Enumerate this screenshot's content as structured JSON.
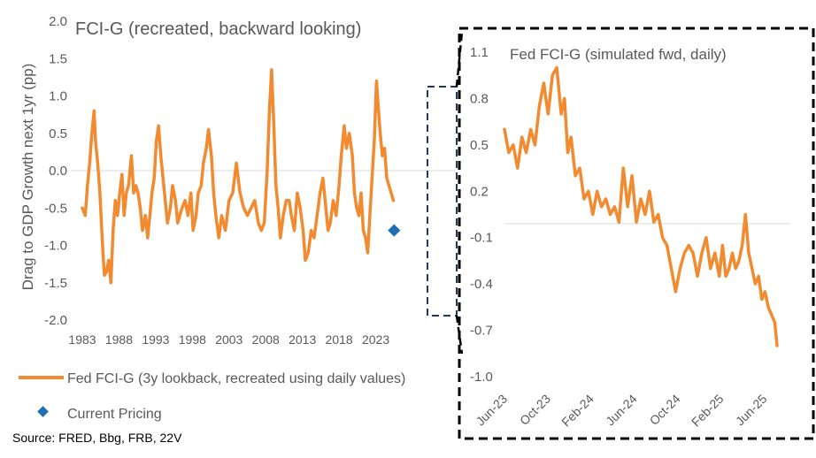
{
  "colors": {
    "series": "#F28A30",
    "marker": "#1F6FB2",
    "text": "#595959",
    "axis": "#D9D9D9",
    "frame": "#000000",
    "frame_small": "#1F3864"
  },
  "source": "Source: FRED, Bbg, FRB, 22V",
  "chart_data": [
    {
      "type": "line",
      "title": "FCI-G (recreated, backward looking)",
      "xlabel": "",
      "ylabel": "Drag to GDP Growth next 1yr (pp)",
      "ylim": [
        -2.0,
        2.0
      ],
      "yticks": [
        "2.0",
        "1.5",
        "1.0",
        "0.5",
        "0.0",
        "-0.5",
        "-1.0",
        "-1.5",
        "-2.0"
      ],
      "xticks": [
        "1983",
        "1988",
        "1993",
        "1998",
        "2003",
        "2008",
        "2013",
        "2018",
        "2023"
      ],
      "legend": [
        "Fed FCI-G (3y lookback, recreated using daily values)",
        "Current Pricing"
      ],
      "series": [
        {
          "name": "Fed FCI-G (3y lookback, recreated using daily values)",
          "x": [
            1983.0,
            1983.4,
            1983.7,
            1984.0,
            1984.3,
            1984.6,
            1984.8,
            1985.1,
            1985.4,
            1985.7,
            1986.0,
            1986.3,
            1986.6,
            1986.9,
            1987.2,
            1987.5,
            1987.8,
            1988.1,
            1988.4,
            1988.7,
            1989.0,
            1989.3,
            1989.7,
            1990.0,
            1990.3,
            1990.6,
            1990.9,
            1991.2,
            1991.6,
            1991.9,
            1992.2,
            1992.5,
            1992.8,
            1993.1,
            1993.4,
            1993.7,
            1994.0,
            1994.3,
            1994.6,
            1995.0,
            1995.3,
            1995.7,
            1996.0,
            1996.3,
            1996.6,
            1997.0,
            1997.4,
            1997.8,
            1998.1,
            1998.5,
            1998.8,
            1999.2,
            1999.5,
            1999.9,
            2000.2,
            2000.6,
            2000.9,
            2001.2,
            2001.6,
            2002.0,
            2002.5,
            2003.0,
            2003.5,
            2004.0,
            2004.5,
            2005.0,
            2005.5,
            2006.0,
            2006.5,
            2007.0,
            2007.4,
            2007.8,
            2008.2,
            2008.5,
            2008.8,
            2009.1,
            2009.4,
            2009.7,
            2010.0,
            2010.4,
            2010.8,
            2011.2,
            2011.5,
            2011.9,
            2012.3,
            2012.7,
            2013.1,
            2013.4,
            2013.8,
            2014.2,
            2014.6,
            2015.0,
            2015.4,
            2015.8,
            2016.2,
            2016.5,
            2016.8,
            2017.2,
            2017.6,
            2018.0,
            2018.3,
            2018.7,
            2019.0,
            2019.4,
            2019.8,
            2020.1,
            2020.4,
            2020.7,
            2021.0,
            2021.3,
            2021.6,
            2021.9,
            2022.2,
            2022.5,
            2022.8,
            2023.1,
            2023.3,
            2023.6,
            2023.9,
            2024.2,
            2024.5,
            2024.8,
            2025.1,
            2025.4
          ],
          "y": [
            -0.5,
            -0.6,
            -0.2,
            0.1,
            0.5,
            0.8,
            0.4,
            0.1,
            -0.3,
            -0.9,
            -1.4,
            -1.35,
            -1.2,
            -1.5,
            -0.8,
            -0.4,
            -0.6,
            -0.3,
            -0.05,
            -0.6,
            -0.3,
            -0.2,
            0.2,
            -0.3,
            -0.2,
            -0.3,
            -0.5,
            -0.8,
            -0.6,
            -0.9,
            -0.6,
            -0.3,
            -0.1,
            0.4,
            0.6,
            0.2,
            -0.1,
            -0.4,
            -0.7,
            -0.5,
            -0.2,
            -0.4,
            -0.7,
            -0.6,
            -0.5,
            -0.4,
            -0.6,
            -0.3,
            -0.8,
            -0.6,
            -0.3,
            -0.2,
            0.1,
            0.3,
            0.55,
            0.2,
            -0.3,
            -0.6,
            -0.9,
            -0.6,
            -0.8,
            -0.4,
            -0.3,
            0.1,
            -0.3,
            -0.5,
            -0.6,
            -0.5,
            -0.4,
            -0.7,
            -0.8,
            -0.7,
            0.0,
            0.8,
            1.35,
            0.6,
            -0.2,
            -0.5,
            -0.9,
            -0.6,
            -0.4,
            -0.4,
            -0.6,
            -0.8,
            -0.3,
            -0.5,
            -0.8,
            -1.2,
            -1.1,
            -0.8,
            -0.9,
            -0.6,
            -0.3,
            -0.1,
            -0.5,
            -0.8,
            -0.7,
            -0.4,
            -0.6,
            -0.2,
            0.2,
            0.6,
            0.3,
            0.5,
            0.2,
            -0.3,
            -0.5,
            -0.6,
            -0.3,
            -0.8,
            -0.9,
            -1.1,
            -0.6,
            -0.1,
            0.4,
            1.2,
            0.9,
            0.5,
            0.2,
            0.3,
            -0.1,
            -0.2,
            -0.3,
            -0.4
          ]
        },
        {
          "name": "Current Pricing",
          "x": [
            2025.5
          ],
          "y": [
            -0.8
          ]
        }
      ]
    },
    {
      "type": "line",
      "title": "Fed FCI-G (simulated fwd, daily)",
      "xlabel": "",
      "ylabel": "",
      "ylim": [
        -1.0,
        1.1
      ],
      "yticks": [
        "1.1",
        "0.8",
        "0.5",
        "0.2",
        "-0.1",
        "-0.4",
        "-0.7",
        "-1.0"
      ],
      "xticks": [
        "Jun-23",
        "Oct-23",
        "Feb-24",
        "Jun-24",
        "Oct-24",
        "Feb-25",
        "Jun-25"
      ],
      "series": [
        {
          "name": "Fed FCI-G (simulated fwd, daily)",
          "x": [
            0,
            0.4,
            0.8,
            1.2,
            1.6,
            2.0,
            2.4,
            2.8,
            3.2,
            3.6,
            4.0,
            4.4,
            4.8,
            5.2,
            5.5,
            5.8,
            6.1,
            6.5,
            6.9,
            7.3,
            7.7,
            8.1,
            8.5,
            8.9,
            9.3,
            9.7,
            10.1,
            10.5,
            10.9,
            11.3,
            11.7,
            12.1,
            12.5,
            12.9,
            13.3,
            13.7,
            14.1,
            14.5,
            14.9,
            15.3,
            15.7,
            16.1,
            16.5,
            16.9,
            17.3,
            17.7,
            18.1,
            18.5,
            18.9,
            19.3,
            19.7,
            20.0,
            20.3,
            20.6,
            20.9,
            21.2,
            21.5,
            21.8,
            22.1,
            22.4,
            22.7,
            23.0,
            23.3,
            23.6,
            23.9,
            24.2,
            24.5,
            24.8,
            25.0
          ],
          "y": [
            0.6,
            0.45,
            0.5,
            0.35,
            0.55,
            0.45,
            0.6,
            0.5,
            0.75,
            0.9,
            0.7,
            0.95,
            1.0,
            0.7,
            0.8,
            0.45,
            0.55,
            0.3,
            0.35,
            0.15,
            0.2,
            0.05,
            0.2,
            0.1,
            0.15,
            0.05,
            0.1,
            0.0,
            0.35,
            0.1,
            0.3,
            0.0,
            0.15,
            0.05,
            0.2,
            0.0,
            0.05,
            -0.1,
            -0.15,
            -0.3,
            -0.45,
            -0.3,
            -0.2,
            -0.15,
            -0.2,
            -0.35,
            -0.2,
            -0.1,
            -0.3,
            -0.2,
            -0.35,
            -0.15,
            -0.35,
            -0.3,
            -0.2,
            -0.3,
            -0.25,
            -0.15,
            0.05,
            -0.2,
            -0.3,
            -0.4,
            -0.35,
            -0.5,
            -0.45,
            -0.55,
            -0.6,
            -0.65,
            -0.8
          ]
        }
      ]
    }
  ]
}
